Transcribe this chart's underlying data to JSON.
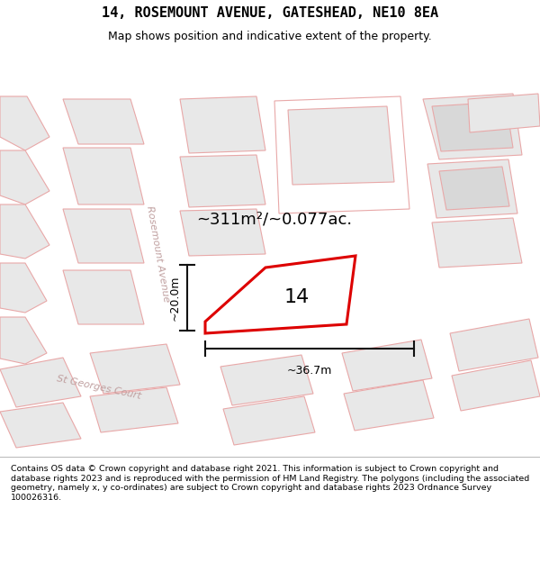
{
  "title": "14, ROSEMOUNT AVENUE, GATESHEAD, NE10 8EA",
  "subtitle": "Map shows position and indicative extent of the property.",
  "footer": "Contains OS data © Crown copyright and database right 2021. This information is subject to Crown copyright and database rights 2023 and is reproduced with the permission of HM Land Registry. The polygons (including the associated geometry, namely x, y co-ordinates) are subject to Crown copyright and database rights 2023 Ordnance Survey 100026316.",
  "area_label": "~311m²/~0.077ac.",
  "width_label": "~36.7m",
  "height_label": "~20.0m",
  "property_number": "14",
  "map_bg": "#ffffff",
  "footer_bg": "#f0f0f0",
  "building_outline_color": "#e8a8a8",
  "building_fill_color": "#e8e8e8",
  "highlight_color": "#dd0000",
  "highlight_fill": "#ffffff",
  "street_text_color": "#c0a0a0",
  "dim_line_color": "#111111",
  "street_label_1": "Rosemount Avenue",
  "street_label_2": "St Georges Court",
  "title_fontsize": 11,
  "subtitle_fontsize": 9,
  "footer_fontsize": 6.8,
  "area_fontsize": 13,
  "dim_fontsize": 9,
  "number_fontsize": 16
}
